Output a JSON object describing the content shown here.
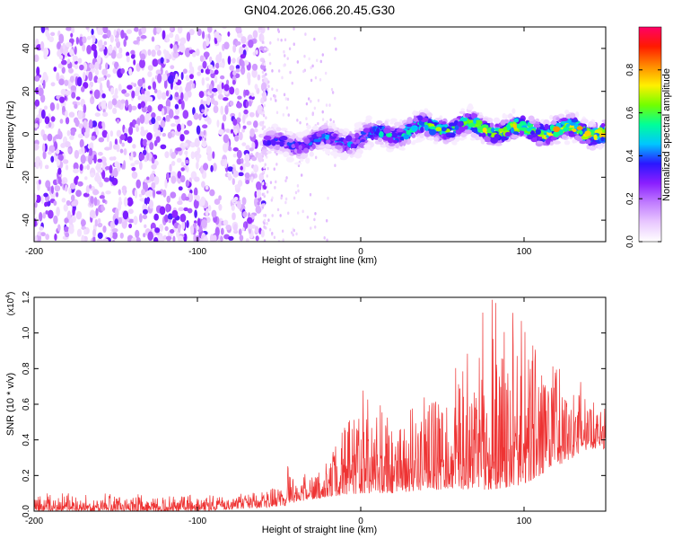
{
  "title": "GN04.2026.066.20.45.G30",
  "colors": {
    "snr_line": "#ee3333",
    "spectro_bg": "#ffffff",
    "colormap": [
      "#ffffff",
      "#e9c8ff",
      "#c07cff",
      "#8a1eff",
      "#2a17ff",
      "#00c6ff",
      "#00ff99",
      "#72ff00",
      "#fff000",
      "#ff8a00",
      "#ff1a00",
      "#ff0066"
    ]
  },
  "chart_data": [
    {
      "type": "heatmap",
      "name": "spectrogram",
      "xlabel": "Height of straight line (km)",
      "ylabel": "Frequency (Hz)",
      "xlim": [
        -200,
        150
      ],
      "ylim": [
        -50,
        50
      ],
      "xticks": [
        -200,
        -100,
        0,
        100
      ],
      "yticks": [
        -40,
        -20,
        0,
        20,
        40
      ],
      "colorbar": {
        "label": "Normalized spectral amplitude",
        "range": [
          0,
          1
        ],
        "ticks": [
          "0.0",
          "0.2",
          "0.4",
          "0.6",
          "0.8"
        ],
        "tick_values": [
          0.0,
          0.2,
          0.4,
          0.6,
          0.8
        ]
      },
      "noise_boundary_x": -60,
      "ridge_x": [
        -60,
        -40,
        -20,
        0,
        20,
        40,
        60,
        80,
        100,
        120,
        150
      ],
      "ridge_freq": [
        -5,
        -4,
        -3,
        -2,
        1,
        3,
        4,
        2,
        2,
        2,
        1
      ],
      "ridge_peak_amplitude": [
        0.35,
        0.4,
        0.45,
        0.45,
        0.55,
        0.65,
        0.7,
        0.75,
        0.8,
        0.85,
        0.9
      ]
    },
    {
      "type": "line",
      "name": "snr",
      "xlabel": "Height of straight line (km)",
      "ylabel": "SNR (10 * v/v)",
      "multiplier": "(x10",
      "multiplier_exp": "4",
      "multiplier_close": ")",
      "xlim": [
        -200,
        150
      ],
      "ylim": [
        0,
        1.2
      ],
      "xticks": [
        -200,
        -100,
        0,
        100
      ],
      "yticks": [
        "0.0",
        "0.2",
        "0.4",
        "0.6",
        "0.8",
        "1.0",
        "1.2"
      ],
      "ytick_values": [
        0.0,
        0.2,
        0.4,
        0.6,
        0.8,
        1.0,
        1.2
      ],
      "x": [
        -200,
        -150,
        -100,
        -60,
        -45,
        -40,
        -20,
        0,
        20,
        40,
        60,
        80,
        100,
        120,
        140,
        150
      ],
      "envelope_upper": [
        0.1,
        0.1,
        0.1,
        0.11,
        0.3,
        0.2,
        0.32,
        0.7,
        0.55,
        0.75,
        0.9,
        1.22,
        1.1,
        0.95,
        0.68,
        0.7
      ],
      "envelope_lower": [
        0.0,
        0.0,
        0.0,
        0.02,
        0.03,
        0.05,
        0.08,
        0.1,
        0.1,
        0.12,
        0.12,
        0.12,
        0.15,
        0.25,
        0.35,
        0.35
      ]
    }
  ]
}
